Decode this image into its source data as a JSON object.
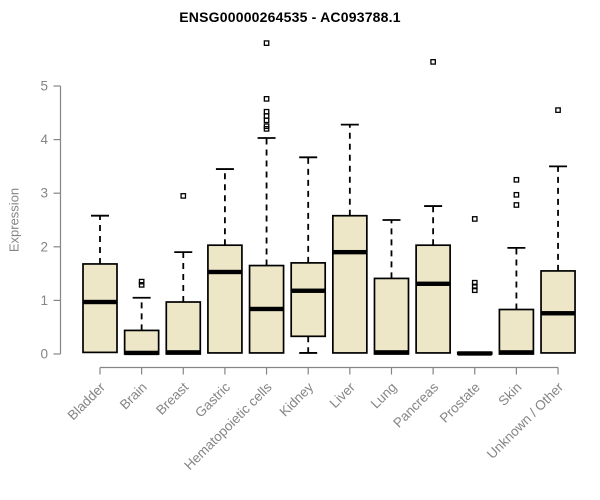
{
  "chart_data": {
    "type": "boxplot",
    "title": "ENSG00000264535 - AC093788.1",
    "ylabel": "Expression",
    "ylim": [
      0,
      5
    ],
    "yticks": [
      0,
      1,
      2,
      3,
      4,
      5
    ],
    "grid": false,
    "legend": false,
    "categories": [
      "Bladder",
      "Brain",
      "Breast",
      "Gastric",
      "Hematopoietic cells",
      "Kidney",
      "Liver",
      "Lung",
      "Pancreas",
      "Prostate",
      "Skin",
      "Unknown / Other"
    ],
    "series": [
      {
        "category": "Bladder",
        "whisker_low": 0.03,
        "q1": 0.03,
        "median": 0.97,
        "q3": 1.68,
        "whisker_high": 2.58,
        "outliers": []
      },
      {
        "category": "Brain",
        "whisker_low": 0.0,
        "q1": 0.0,
        "median": 0.02,
        "q3": 0.44,
        "whisker_high": 1.05,
        "outliers": [
          1.29,
          1.35
        ]
      },
      {
        "category": "Breast",
        "whisker_low": 0.0,
        "q1": 0.0,
        "median": 0.03,
        "q3": 0.97,
        "whisker_high": 1.9,
        "outliers": [
          2.95
        ]
      },
      {
        "category": "Gastric",
        "whisker_low": 0.0,
        "q1": 0.02,
        "median": 1.53,
        "q3": 2.03,
        "whisker_high": 3.45,
        "outliers": []
      },
      {
        "category": "Hematopoietic cells",
        "whisker_low": 0.0,
        "q1": 0.02,
        "median": 0.84,
        "q3": 1.65,
        "whisker_high": 4.03,
        "outliers": [
          5.8,
          4.76,
          4.52,
          4.44,
          4.36,
          4.25,
          4.2
        ]
      },
      {
        "category": "Kidney",
        "whisker_low": 0.02,
        "q1": 0.33,
        "median": 1.18,
        "q3": 1.7,
        "whisker_high": 3.67,
        "outliers": []
      },
      {
        "category": "Liver",
        "whisker_low": 0.0,
        "q1": 0.02,
        "median": 1.9,
        "q3": 2.58,
        "whisker_high": 4.28,
        "outliers": []
      },
      {
        "category": "Lung",
        "whisker_low": 0.0,
        "q1": 0.0,
        "median": 0.03,
        "q3": 1.41,
        "whisker_high": 2.5,
        "outliers": []
      },
      {
        "category": "Pancreas",
        "whisker_low": 0.0,
        "q1": 0.02,
        "median": 1.31,
        "q3": 2.03,
        "whisker_high": 2.76,
        "outliers": [
          5.45
        ]
      },
      {
        "category": "Prostate",
        "whisker_low": 0.0,
        "q1": 0.0,
        "median": 0.01,
        "q3": 0.03,
        "whisker_high": 0.03,
        "outliers": [
          2.52,
          1.33,
          1.26,
          1.19
        ]
      },
      {
        "category": "Skin",
        "whisker_low": 0.0,
        "q1": 0.0,
        "median": 0.03,
        "q3": 0.83,
        "whisker_high": 1.98,
        "outliers": [
          3.25,
          2.97,
          2.78
        ]
      },
      {
        "category": "Unknown / Other",
        "whisker_low": 0.0,
        "q1": 0.02,
        "median": 0.76,
        "q3": 1.55,
        "whisker_high": 3.5,
        "outliers": [
          4.55
        ]
      }
    ],
    "colors": {
      "box_fill": "#EDE7C7",
      "box_border": "#000000",
      "median": "#000000",
      "whisker": "#000000",
      "outlier": "#000000",
      "axis": "#858585",
      "tick_label": "#858585",
      "title": "#000000",
      "background": "#FFFFFF"
    }
  }
}
